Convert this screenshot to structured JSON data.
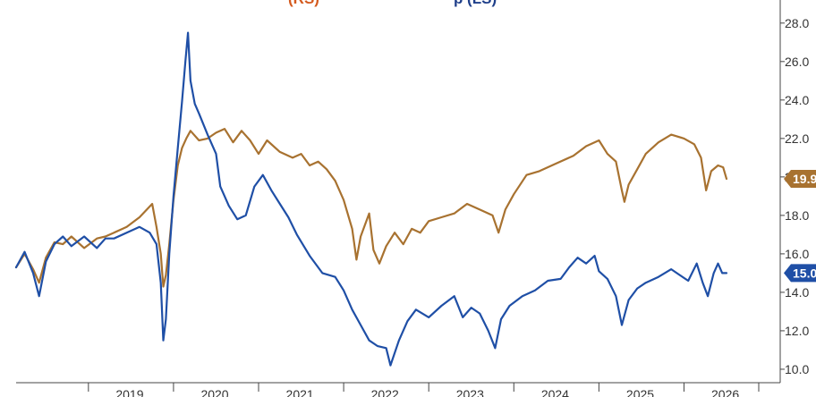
{
  "chart_data": {
    "type": "line",
    "title_fragments": [
      {
        "text": "(RS)",
        "color": "#d45a1e"
      },
      {
        "text": "p (LS)",
        "color": "#1f3f8a"
      }
    ],
    "xlabel": "",
    "ylabel": "",
    "x_axis_labels": [
      "2019",
      "2020",
      "2021",
      "2022",
      "2023",
      "2024",
      "2025",
      "2026"
    ],
    "y_axis_labels": [
      "10.0",
      "12.0",
      "14.0",
      "16.0",
      "18.0",
      "20.0",
      "22.0",
      "24.0",
      "26.0",
      "28.0"
    ],
    "ylim": [
      9.3,
      29.2
    ],
    "xlim": [
      2018.15,
      2026.5
    ],
    "grid": false,
    "legend": "none",
    "series": [
      {
        "color": "#a87230",
        "last_value_label": "19.9",
        "points": [
          [
            2018.15,
            15.3
          ],
          [
            2018.25,
            16.0
          ],
          [
            2018.35,
            15.2
          ],
          [
            2018.42,
            14.5
          ],
          [
            2018.5,
            15.8
          ],
          [
            2018.6,
            16.6
          ],
          [
            2018.7,
            16.5
          ],
          [
            2018.8,
            16.9
          ],
          [
            2018.95,
            16.3
          ],
          [
            2019.1,
            16.8
          ],
          [
            2019.2,
            16.9
          ],
          [
            2019.3,
            17.1
          ],
          [
            2019.45,
            17.4
          ],
          [
            2019.6,
            17.9
          ],
          [
            2019.75,
            18.6
          ],
          [
            2019.8,
            17.4
          ],
          [
            2019.85,
            16.0
          ],
          [
            2019.88,
            14.3
          ],
          [
            2019.91,
            14.9
          ],
          [
            2019.95,
            16.5
          ],
          [
            2020.0,
            18.8
          ],
          [
            2020.05,
            20.6
          ],
          [
            2020.1,
            21.5
          ],
          [
            2020.15,
            22.0
          ],
          [
            2020.2,
            22.4
          ],
          [
            2020.3,
            21.9
          ],
          [
            2020.4,
            22.0
          ],
          [
            2020.5,
            22.3
          ],
          [
            2020.6,
            22.5
          ],
          [
            2020.7,
            21.8
          ],
          [
            2020.8,
            22.4
          ],
          [
            2020.9,
            21.9
          ],
          [
            2021.0,
            21.2
          ],
          [
            2021.1,
            21.9
          ],
          [
            2021.25,
            21.3
          ],
          [
            2021.4,
            21.0
          ],
          [
            2021.5,
            21.2
          ],
          [
            2021.6,
            20.6
          ],
          [
            2021.7,
            20.8
          ],
          [
            2021.8,
            20.4
          ],
          [
            2021.9,
            19.8
          ],
          [
            2022.0,
            18.8
          ],
          [
            2022.1,
            17.3
          ],
          [
            2022.15,
            15.7
          ],
          [
            2022.2,
            16.9
          ],
          [
            2022.3,
            18.1
          ],
          [
            2022.35,
            16.2
          ],
          [
            2022.42,
            15.5
          ],
          [
            2022.5,
            16.4
          ],
          [
            2022.6,
            17.1
          ],
          [
            2022.7,
            16.5
          ],
          [
            2022.8,
            17.3
          ],
          [
            2022.9,
            17.1
          ],
          [
            2023.0,
            17.7
          ],
          [
            2023.15,
            17.9
          ],
          [
            2023.3,
            18.1
          ],
          [
            2023.45,
            18.6
          ],
          [
            2023.6,
            18.3
          ],
          [
            2023.75,
            18.0
          ],
          [
            2023.82,
            17.1
          ],
          [
            2023.9,
            18.3
          ],
          [
            2024.0,
            19.1
          ],
          [
            2024.15,
            20.1
          ],
          [
            2024.3,
            20.3
          ],
          [
            2024.5,
            20.7
          ],
          [
            2024.7,
            21.1
          ],
          [
            2024.85,
            21.6
          ],
          [
            2025.0,
            21.9
          ],
          [
            2025.1,
            21.2
          ],
          [
            2025.2,
            20.8
          ],
          [
            2025.27,
            19.3
          ],
          [
            2025.3,
            18.7
          ],
          [
            2025.35,
            19.6
          ],
          [
            2025.45,
            20.4
          ],
          [
            2025.55,
            21.2
          ],
          [
            2025.7,
            21.8
          ],
          [
            2025.85,
            22.2
          ],
          [
            2026.0,
            22.0
          ],
          [
            2026.12,
            21.7
          ],
          [
            2026.2,
            21.0
          ],
          [
            2026.26,
            19.3
          ],
          [
            2026.32,
            20.3
          ],
          [
            2026.4,
            20.6
          ],
          [
            2026.46,
            20.5
          ],
          [
            2026.5,
            19.9
          ]
        ]
      },
      {
        "color": "#1f4fa6",
        "last_value_label": "15.0",
        "points": [
          [
            2018.15,
            15.3
          ],
          [
            2018.25,
            16.1
          ],
          [
            2018.35,
            15.0
          ],
          [
            2018.42,
            13.8
          ],
          [
            2018.5,
            15.6
          ],
          [
            2018.6,
            16.5
          ],
          [
            2018.7,
            16.9
          ],
          [
            2018.8,
            16.4
          ],
          [
            2018.95,
            16.9
          ],
          [
            2019.1,
            16.3
          ],
          [
            2019.2,
            16.8
          ],
          [
            2019.3,
            16.8
          ],
          [
            2019.45,
            17.1
          ],
          [
            2019.6,
            17.4
          ],
          [
            2019.72,
            17.1
          ],
          [
            2019.8,
            16.5
          ],
          [
            2019.85,
            14.5
          ],
          [
            2019.88,
            11.5
          ],
          [
            2019.91,
            12.6
          ],
          [
            2019.95,
            16.0
          ],
          [
            2020.0,
            19.0
          ],
          [
            2020.05,
            21.5
          ],
          [
            2020.1,
            23.9
          ],
          [
            2020.14,
            26.0
          ],
          [
            2020.17,
            27.5
          ],
          [
            2020.2,
            25.0
          ],
          [
            2020.25,
            23.8
          ],
          [
            2020.3,
            23.3
          ],
          [
            2020.4,
            22.2
          ],
          [
            2020.5,
            21.2
          ],
          [
            2020.55,
            19.5
          ],
          [
            2020.65,
            18.5
          ],
          [
            2020.75,
            17.8
          ],
          [
            2020.85,
            18.0
          ],
          [
            2020.95,
            19.5
          ],
          [
            2021.05,
            20.1
          ],
          [
            2021.15,
            19.3
          ],
          [
            2021.25,
            18.6
          ],
          [
            2021.35,
            17.9
          ],
          [
            2021.45,
            17.0
          ],
          [
            2021.6,
            15.9
          ],
          [
            2021.75,
            15.0
          ],
          [
            2021.9,
            14.8
          ],
          [
            2022.0,
            14.1
          ],
          [
            2022.1,
            13.1
          ],
          [
            2022.2,
            12.3
          ],
          [
            2022.3,
            11.5
          ],
          [
            2022.4,
            11.2
          ],
          [
            2022.5,
            11.1
          ],
          [
            2022.55,
            10.2
          ],
          [
            2022.65,
            11.5
          ],
          [
            2022.75,
            12.5
          ],
          [
            2022.85,
            13.1
          ],
          [
            2023.0,
            12.7
          ],
          [
            2023.15,
            13.3
          ],
          [
            2023.3,
            13.8
          ],
          [
            2023.4,
            12.7
          ],
          [
            2023.5,
            13.2
          ],
          [
            2023.6,
            12.9
          ],
          [
            2023.7,
            12.0
          ],
          [
            2023.78,
            11.1
          ],
          [
            2023.85,
            12.6
          ],
          [
            2023.95,
            13.3
          ],
          [
            2024.1,
            13.8
          ],
          [
            2024.25,
            14.1
          ],
          [
            2024.4,
            14.6
          ],
          [
            2024.55,
            14.7
          ],
          [
            2024.65,
            15.3
          ],
          [
            2024.75,
            15.8
          ],
          [
            2024.85,
            15.5
          ],
          [
            2024.95,
            15.9
          ],
          [
            2025.0,
            15.1
          ],
          [
            2025.1,
            14.7
          ],
          [
            2025.2,
            13.8
          ],
          [
            2025.27,
            12.3
          ],
          [
            2025.35,
            13.6
          ],
          [
            2025.45,
            14.2
          ],
          [
            2025.55,
            14.5
          ],
          [
            2025.7,
            14.8
          ],
          [
            2025.85,
            15.2
          ],
          [
            2025.95,
            14.9
          ],
          [
            2026.05,
            14.6
          ],
          [
            2026.15,
            15.5
          ],
          [
            2026.22,
            14.5
          ],
          [
            2026.28,
            13.8
          ],
          [
            2026.35,
            15.0
          ],
          [
            2026.4,
            15.5
          ],
          [
            2026.45,
            15.0
          ],
          [
            2026.5,
            15.0
          ]
        ]
      }
    ]
  }
}
